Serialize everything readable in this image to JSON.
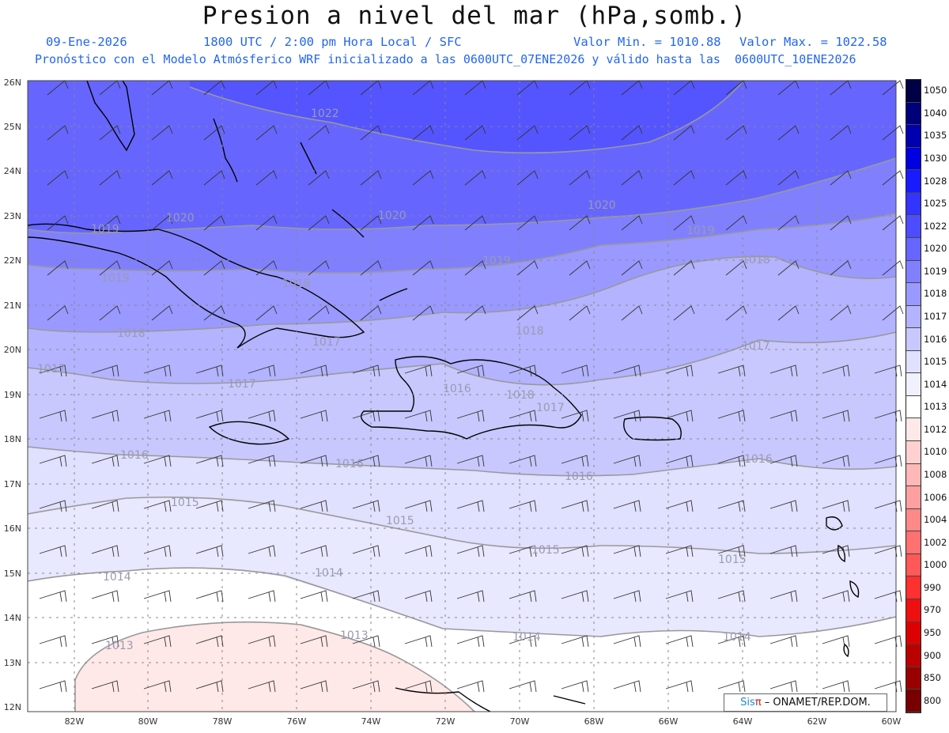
{
  "header": {
    "title": "Presion a nivel del mar (hPa,somb.)",
    "date": "09-Ene-2026",
    "time": "1800 UTC / 2:00 pm Hora Local / SFC",
    "min_label": "Valor Min. = 1010.88",
    "max_label": "Valor Max. = 1022.58",
    "model_line": "Pronóstico con el Modelo Atmósferico WRF inicializado a las 0600UTC_07ENE2026 y válido hasta las  0600UTC_10ENE2026"
  },
  "map": {
    "lat_labels": [
      "26N",
      "25N",
      "24N",
      "23N",
      "22N",
      "21N",
      "20N",
      "19N",
      "18N",
      "17N",
      "16N",
      "15N",
      "14N",
      "13N",
      "12N"
    ],
    "lon_labels": [
      "82W",
      "80W",
      "78W",
      "76W",
      "74W",
      "72W",
      "70W",
      "68W",
      "66W",
      "64W",
      "62W",
      "60W"
    ],
    "isobar_labels": [
      "1022",
      "1020",
      "1020",
      "1020",
      "1019",
      "1019",
      "1019",
      "1019",
      "1018",
      "1018",
      "1018",
      "1018",
      "1017",
      "1017",
      "1017",
      "1017",
      "1016",
      "1016",
      "1016",
      "1016",
      "1015",
      "1015",
      "1015",
      "1015",
      "1014",
      "1014",
      "1014",
      "1014",
      "1013",
      "1013",
      "1018",
      "1017",
      "1016"
    ]
  },
  "legend": {
    "levels": [
      "1050",
      "1040",
      "1035",
      "1030",
      "1028",
      "1025",
      "1022",
      "1020",
      "1019",
      "1018",
      "1017",
      "1016",
      "1015",
      "1014",
      "1013",
      "1012",
      "1010",
      "1008",
      "1006",
      "1004",
      "1002",
      "1000",
      "990",
      "970",
      "950",
      "900",
      "850",
      "800"
    ],
    "colors": [
      "#000044",
      "#00007a",
      "#0000b0",
      "#0000e0",
      "#1a1aff",
      "#3434ff",
      "#4d4dff",
      "#6666ff",
      "#8080ff",
      "#9999ff",
      "#b3b3ff",
      "#c8c8ff",
      "#e0e0ff",
      "#f0f0ff",
      "#ffffff",
      "#ffe8e8",
      "#ffd0d0",
      "#ffb8b8",
      "#ffa0a0",
      "#ff8888",
      "#ff7070",
      "#ff5858",
      "#ff3030",
      "#ee1010",
      "#dd0000",
      "#bb0000",
      "#990000",
      "#770000"
    ]
  },
  "credit": {
    "sis": "Sis",
    "pi": "π",
    "org": "– ONAMET/REP.DOM."
  }
}
